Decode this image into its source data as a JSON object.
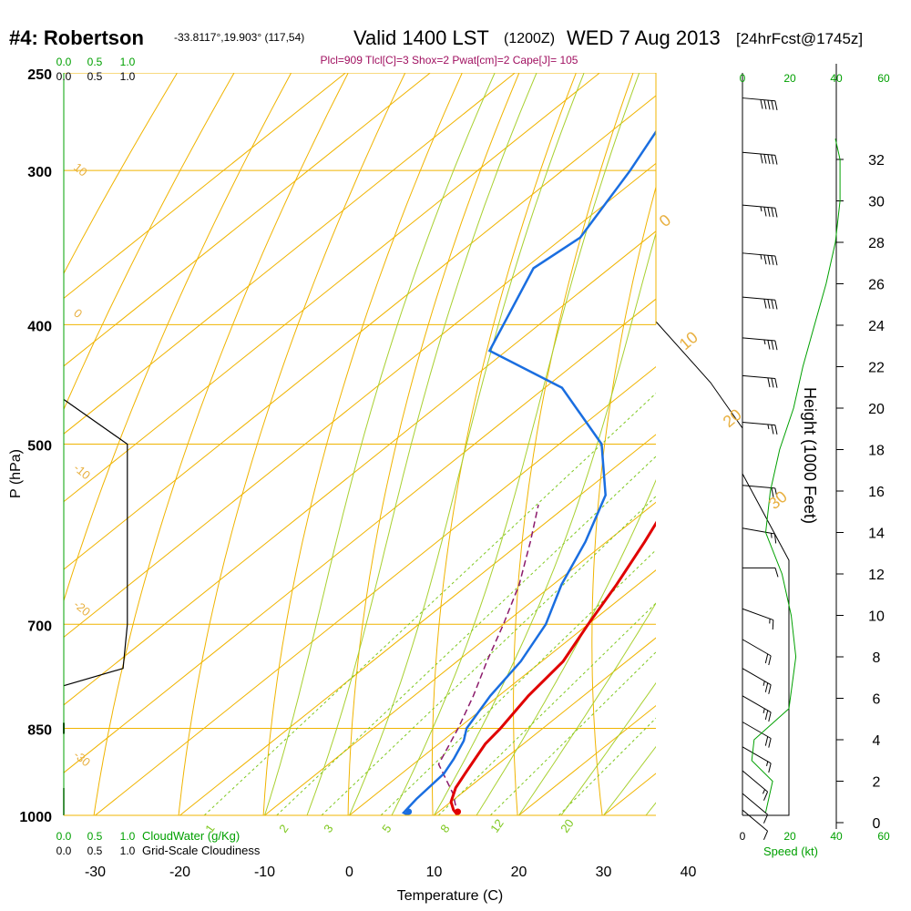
{
  "header": {
    "station": "#4: Robertson",
    "coords": "-33.8117°,19.903° (117,54)",
    "valid": "Valid 1400 LST",
    "utc": "(1200Z)",
    "date": "WED 7 Aug 2013",
    "forecast": "[24hrFcst@1745z]",
    "indices": "Plcl=909 Tlcl[C]=3 Shox=2 Pwat[cm]=2 Cape[J]= 105"
  },
  "colors": {
    "isotherm": "#f0b400",
    "mixing_ratio": "#7fc820",
    "moist_adiabat": "#a8d030",
    "temperature": "#e00000",
    "dewpoint": "#1a6ee0",
    "parcel": "#8b1a6b",
    "cloud": "#000000",
    "wind": "#000000",
    "speed": "#00a000",
    "index_text": "#a01060"
  },
  "chart_data": {
    "type": "skew-t",
    "xlabel": "Temperature (C)",
    "ylabel": "P (hPa)",
    "right_label": "Height (1000 Feet)",
    "x_ticks": [
      "-30",
      "-20",
      "-10",
      "0",
      "10",
      "20",
      "30",
      "40"
    ],
    "p_ticks": [
      "250",
      "300",
      "400",
      "500",
      "700",
      "850",
      "1000"
    ],
    "height_ticks": [
      "0",
      "2",
      "4",
      "6",
      "8",
      "10",
      "12",
      "14",
      "16",
      "18",
      "20",
      "22",
      "24",
      "26",
      "28",
      "30",
      "32"
    ],
    "cloudwater_scale_top": [
      "0.0",
      "0.5",
      "1.0"
    ],
    "cloudiness_scale_top": [
      "0.0",
      "0.5",
      "1.0"
    ],
    "cloudwater_scale_bottom": [
      "0.0",
      "0.5",
      "1.0"
    ],
    "cloudiness_scale_bottom": [
      "0.0",
      "0.5",
      "1.0"
    ],
    "cloudwater_label": "CloudWater (g/Kg)",
    "cloudiness_label": "Grid-Scale Cloudiness",
    "speed_scale_top": [
      "0",
      "20",
      "40",
      "60"
    ],
    "speed_scale_bottom": [
      "0",
      "20",
      "40",
      "60"
    ],
    "speed_label": "Speed (kt)",
    "dry_adiabat_labels": [
      "10",
      "0",
      "-10",
      "-20",
      "-30"
    ],
    "moist_adiabat_labels": [
      "0",
      "10",
      "20",
      "30"
    ],
    "mixing_ratio_labels": [
      "1",
      "2",
      "3",
      "5",
      "8",
      "12",
      "20"
    ],
    "temperature": [
      {
        "p": 1000,
        "t": 12.8
      },
      {
        "p": 990,
        "t": 11.5
      },
      {
        "p": 975,
        "t": 10
      },
      {
        "p": 950,
        "t": 8.5
      },
      {
        "p": 925,
        "t": 7.5
      },
      {
        "p": 900,
        "t": 6.5
      },
      {
        "p": 875,
        "t": 5.5
      },
      {
        "p": 850,
        "t": 5
      },
      {
        "p": 800,
        "t": 3.5
      },
      {
        "p": 750,
        "t": 2.5
      },
      {
        "p": 700,
        "t": 0
      },
      {
        "p": 650,
        "t": -2.5
      },
      {
        "p": 600,
        "t": -5.5
      },
      {
        "p": 550,
        "t": -9
      },
      {
        "p": 500,
        "t": -14
      },
      {
        "p": 450,
        "t": -19.5
      },
      {
        "p": 400,
        "t": -26
      },
      {
        "p": 350,
        "t": -34
      },
      {
        "p": 300,
        "t": -43
      },
      {
        "p": 270,
        "t": -50
      },
      {
        "p": 262,
        "t": -52
      }
    ],
    "dewpoint": [
      {
        "p": 1000,
        "t": 7
      },
      {
        "p": 995,
        "t": 6
      },
      {
        "p": 970,
        "t": 5.5
      },
      {
        "p": 925,
        "t": 5
      },
      {
        "p": 900,
        "t": 4
      },
      {
        "p": 870,
        "t": 2.5
      },
      {
        "p": 850,
        "t": 1
      },
      {
        "p": 800,
        "t": -1
      },
      {
        "p": 750,
        "t": -2.5
      },
      {
        "p": 700,
        "t": -5
      },
      {
        "p": 650,
        "t": -9
      },
      {
        "p": 600,
        "t": -12.5
      },
      {
        "p": 550,
        "t": -17
      },
      {
        "p": 500,
        "t": -25
      },
      {
        "p": 450,
        "t": -38
      },
      {
        "p": 420,
        "t": -52
      },
      {
        "p": 360,
        "t": -59
      },
      {
        "p": 340,
        "t": -58
      },
      {
        "p": 300,
        "t": -62
      },
      {
        "p": 262,
        "t": -67
      }
    ],
    "parcel": [
      {
        "p": 1000,
        "t": 12.8
      },
      {
        "p": 960,
        "t": 9
      },
      {
        "p": 909,
        "t": 3
      },
      {
        "p": 850,
        "t": 0
      },
      {
        "p": 800,
        "t": -3
      },
      {
        "p": 750,
        "t": -6.5
      },
      {
        "p": 700,
        "t": -10
      },
      {
        "p": 650,
        "t": -14
      },
      {
        "p": 600,
        "t": -19
      },
      {
        "p": 560,
        "t": -23.5
      }
    ],
    "surface_temperature": 12.8,
    "surface_dewpoint": 7,
    "speed_profile_kt": [
      {
        "h": 0.5,
        "s": 10
      },
      {
        "h": 2,
        "s": 13
      },
      {
        "h": 3,
        "s": 4
      },
      {
        "h": 4,
        "s": 5
      },
      {
        "h": 5.5,
        "s": 20
      },
      {
        "h": 8,
        "s": 23
      },
      {
        "h": 10,
        "s": 21
      },
      {
        "h": 12,
        "s": 17
      },
      {
        "h": 14,
        "s": 10
      },
      {
        "h": 16,
        "s": 12
      },
      {
        "h": 18,
        "s": 16
      },
      {
        "h": 20,
        "s": 22
      },
      {
        "h": 22,
        "s": 26
      },
      {
        "h": 24,
        "s": 31
      },
      {
        "h": 26,
        "s": 36
      },
      {
        "h": 28,
        "s": 40
      },
      {
        "h": 30,
        "s": 42
      },
      {
        "h": 32,
        "s": 42
      },
      {
        "h": 33,
        "s": 40
      }
    ],
    "wind_barbs": [
      {
        "p": 262,
        "dir": 275,
        "kt": 50
      },
      {
        "p": 290,
        "dir": 275,
        "kt": 50
      },
      {
        "p": 320,
        "dir": 275,
        "kt": 45
      },
      {
        "p": 350,
        "dir": 275,
        "kt": 45
      },
      {
        "p": 380,
        "dir": 275,
        "kt": 40
      },
      {
        "p": 410,
        "dir": 275,
        "kt": 35
      },
      {
        "p": 440,
        "dir": 275,
        "kt": 30
      },
      {
        "p": 480,
        "dir": 275,
        "kt": 25
      },
      {
        "p": 540,
        "dir": 275,
        "kt": 20
      },
      {
        "p": 585,
        "dir": 280,
        "kt": 15
      },
      {
        "p": 630,
        "dir": 270,
        "kt": 10
      },
      {
        "p": 680,
        "dir": 290,
        "kt": 15
      },
      {
        "p": 720,
        "dir": 300,
        "kt": 20
      },
      {
        "p": 760,
        "dir": 300,
        "kt": 25
      },
      {
        "p": 800,
        "dir": 300,
        "kt": 25
      },
      {
        "p": 840,
        "dir": 300,
        "kt": 20
      },
      {
        "p": 880,
        "dir": 300,
        "kt": 15
      },
      {
        "p": 920,
        "dir": 310,
        "kt": 15
      },
      {
        "p": 960,
        "dir": 310,
        "kt": 10
      },
      {
        "p": 990,
        "dir": 310,
        "kt": 10
      }
    ],
    "cloudiness": [
      {
        "p": 460,
        "c": 0
      },
      {
        "p": 500,
        "c": 0.75
      },
      {
        "p": 700,
        "c": 0.75
      },
      {
        "p": 760,
        "c": 0.7
      },
      {
        "p": 785,
        "c": 0
      }
    ],
    "cloudwater": [
      {
        "p": 250,
        "q": 0
      },
      {
        "p": 1000,
        "q": 0
      }
    ],
    "x_range": [
      -35,
      47
    ],
    "p_range": [
      1000,
      250
    ],
    "height_range_kft": [
      0,
      33
    ]
  }
}
